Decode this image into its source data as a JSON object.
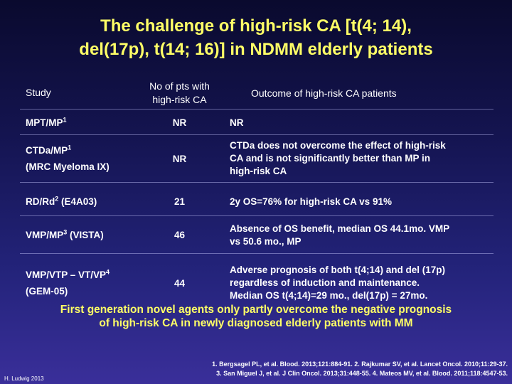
{
  "title_line1": "The challenge of high-risk CA [t(4; 14),",
  "title_line2": "del(17p), t(14; 16)] in NDMM elderly patients",
  "header": {
    "study": "Study",
    "pts_line1": "No of pts with",
    "pts_line2": "high-risk CA",
    "outcome": "Outcome of high-risk CA patients"
  },
  "rows": [
    {
      "study_line1": "MPT/MP",
      "study_sup1": "1",
      "study_line2": "",
      "pts": "NR",
      "outcome_line1": "NR",
      "outcome_line2": "",
      "outcome_line3": ""
    },
    {
      "study_line1": "CTDa/MP",
      "study_sup1": "1",
      "study_line2": "(MRC Myeloma IX)",
      "pts": "NR",
      "outcome_line1": "CTDa does not overcome the effect of high-risk",
      "outcome_line2": "CA and is not significantly better than MP in",
      "outcome_line3": "high-risk CA"
    },
    {
      "study_line1": "RD/Rd",
      "study_sup1": "2",
      "study_line1b": " (E4A03)",
      "study_line2": "",
      "pts": "21",
      "outcome_line1": "2y OS=76% for high-risk CA vs 91%",
      "outcome_line2": "",
      "outcome_line3": ""
    },
    {
      "study_line1": "VMP/MP",
      "study_sup1": "3",
      "study_line1b": " (VISTA)",
      "study_line2": "",
      "pts": "46",
      "outcome_line1": "Absence of OS benefit, median OS 44.1mo. VMP",
      "outcome_line2": "vs 50.6 mo., MP",
      "outcome_line3": ""
    },
    {
      "study_line1": "VMP/VTP – VT/VP",
      "study_sup1": "4",
      "study_line2": "(GEM-05)",
      "pts": "44",
      "outcome_line1": "Adverse prognosis of both t(4;14) and del (17p)",
      "outcome_line2": "regardless of induction and maintenance.",
      "outcome_line3": "Median OS t(4;14)=29 mo., del(17p) = 27mo."
    }
  ],
  "conclusion_line1": "First generation novel agents only partly overcome the negative prognosis",
  "conclusion_line2": "of high-risk CA in newly diagnosed elderly patients with MM",
  "author": "H. Ludwig 2013",
  "refs_line1": "1. Bergsagel PL, et al. Blood. 2013;121:884-91. 2. Rajkumar SV, et al. Lancet Oncol. 2010;11:29-37.",
  "refs_line2": "3. San Miguel J, et al. J Clin Oncol. 2013;31:448-55. 4. Mateos MV, et al. Blood. 2011;118:4547-53.",
  "colors": {
    "title": "#ffff66",
    "body_text": "#ffffff",
    "background_top": "#0a0a2e",
    "background_bottom": "#3a2f9a"
  }
}
